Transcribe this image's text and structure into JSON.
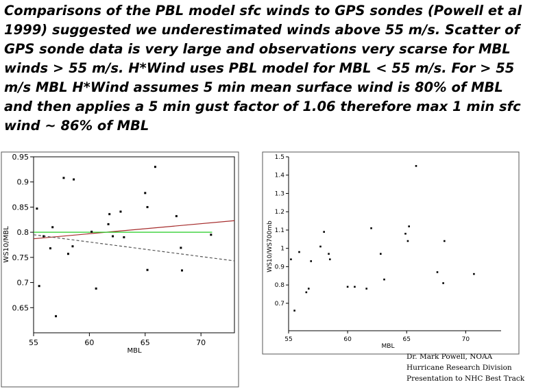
{
  "heading": "Comparisons of the PBL model sfc winds to GPS sondes (Powell et al 1999) suggested we underestimated winds above 55 m/s. Scatter of GPS sonde data is very large and observations very scarse for MBL winds > 55 m/s.  H*Wind uses PBL model for MBL < 55 m/s.  For > 55 m/s MBL H*Wind assumes 5 min mean surface wind is 80% of MBL and then applies a 5 min gust factor of 1.06 therefore max 1 min sfc wind ~ 86% of MBL",
  "credits": {
    "line1": "Dr. Mark Powell, NOAA",
    "line2": "Hurricane Research Division",
    "line3": "Presentation to NHC Best Track"
  },
  "colors": {
    "fit_line": "#a52a2a",
    "reference_line": "#22cc22",
    "dashed_line": "#555555"
  },
  "chart_data": [
    {
      "type": "scatter",
      "xlabel": "MBL",
      "ylabel": "WS10/MBL",
      "xlim": [
        55,
        73
      ],
      "ylim": [
        0.6,
        0.95
      ],
      "xticks": [
        55,
        60,
        65,
        70
      ],
      "yticks": [
        0.65,
        0.7,
        0.75,
        0.8,
        0.85,
        0.9,
        0.95
      ],
      "tick_labels_x": [
        "55",
        "60",
        "65",
        "70"
      ],
      "tick_labels_y": [
        "0.65",
        "0.7",
        "0.75",
        "0.8",
        "0.85",
        "0.9",
        "0.95"
      ],
      "x": [
        55.3,
        55.5,
        55.9,
        56.5,
        56.7,
        57.0,
        57.7,
        58.1,
        58.5,
        58.6,
        60.2,
        60.6,
        61.7,
        61.8,
        62.1,
        62.8,
        63.1,
        65.0,
        65.2,
        65.2,
        65.9,
        67.8,
        68.2,
        68.3,
        70.9
      ],
      "y": [
        0.847,
        0.693,
        0.792,
        0.768,
        0.81,
        0.633,
        0.908,
        0.757,
        0.772,
        0.905,
        0.801,
        0.688,
        0.816,
        0.836,
        0.792,
        0.841,
        0.79,
        0.878,
        0.85,
        0.725,
        0.93,
        0.832,
        0.769,
        0.724,
        0.795
      ],
      "lines": [
        {
          "x": [
            55,
            73
          ],
          "y": [
            0.787,
            0.823
          ],
          "style": "solid",
          "color": "#a52a2a"
        },
        {
          "x": [
            55,
            71
          ],
          "y": [
            0.8,
            0.8
          ],
          "style": "solid",
          "color": "#22cc22"
        },
        {
          "x": [
            55,
            73
          ],
          "y": [
            0.795,
            0.743
          ],
          "style": "dashed",
          "color": "#555555"
        }
      ]
    },
    {
      "type": "scatter",
      "xlabel": "MBL",
      "ylabel": "WS10/WS700mb",
      "xlim": [
        55,
        73
      ],
      "ylim": [
        0.55,
        1.5
      ],
      "xticks": [
        55,
        60,
        65,
        70
      ],
      "yticks": [
        0.7,
        0.8,
        0.9,
        1.0,
        1.1,
        1.2,
        1.3,
        1.4,
        1.5
      ],
      "tick_labels_x": [
        "55",
        "60",
        "65",
        "70"
      ],
      "tick_labels_y": [
        "0.7",
        "0.8",
        "0.9",
        "1",
        "1.1",
        "1.2",
        "1.3",
        "1.4",
        "1.5"
      ],
      "x": [
        55.2,
        55.5,
        55.9,
        56.5,
        56.7,
        56.9,
        57.7,
        58.0,
        58.4,
        58.5,
        60.0,
        60.6,
        61.6,
        62.0,
        62.8,
        63.1,
        64.9,
        65.1,
        65.2,
        65.8,
        67.6,
        68.1,
        68.2,
        70.7
      ],
      "y": [
        0.94,
        0.66,
        0.98,
        0.76,
        0.78,
        0.93,
        1.01,
        1.09,
        0.97,
        0.94,
        0.79,
        0.79,
        0.78,
        1.11,
        0.97,
        0.83,
        1.08,
        1.04,
        1.12,
        1.45,
        0.87,
        0.81,
        1.04,
        0.86
      ]
    }
  ]
}
